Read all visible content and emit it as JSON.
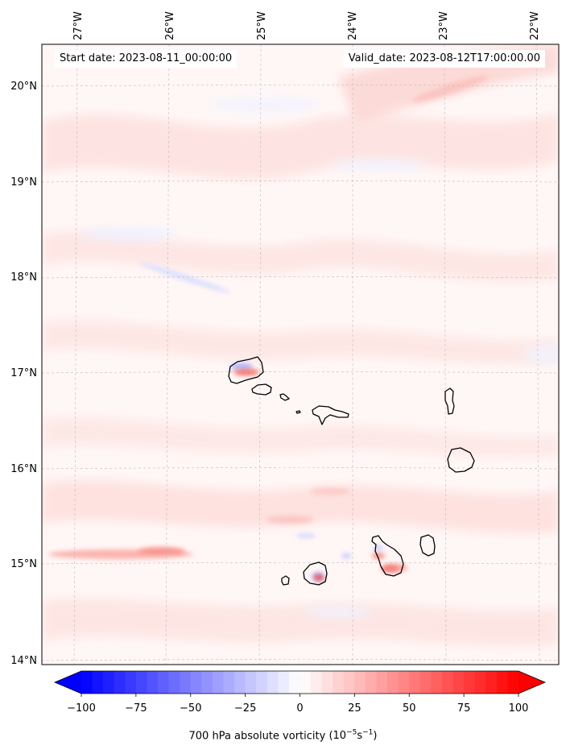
{
  "header": {
    "start_date": "Start date: 2023-08-11_00:00:00",
    "valid_date": "Valid_date: 2023-08-12T17:00:00.00"
  },
  "map": {
    "variable": "700 hPa absolute vorticity",
    "units_prefix": "(10",
    "units_exp1": "−5",
    "units_mid": "s",
    "units_exp2": "−1",
    "units_suffix": ")",
    "lon_ticks": [
      "27°W",
      "26°W",
      "25°W",
      "24°W",
      "23°W",
      "22°W"
    ],
    "lat_ticks": [
      "20°N",
      "19°N",
      "18°N",
      "17°N",
      "16°N",
      "15°N",
      "14°N"
    ],
    "extent": {
      "lon_min": -27.4,
      "lon_max": -21.95,
      "lat_min": 13.95,
      "lat_max": 20.4
    },
    "islands": [
      "Santo Antão",
      "São Vicente",
      "Santa Luzia",
      "Branco",
      "São Nicolau",
      "Sal",
      "Boa Vista",
      "Brava",
      "Fogo",
      "Santiago",
      "Maio"
    ],
    "grid": "on"
  },
  "colorbar": {
    "ticks": [
      "−100",
      "−75",
      "−50",
      "−25",
      "0",
      "25",
      "50",
      "75",
      "100"
    ],
    "min": -100,
    "max": 100,
    "extend": "both",
    "colormap": "bwr",
    "low_color": "#0000ff",
    "mid_color": "#ffffff",
    "high_color": "#ff0000"
  },
  "colors": {
    "land_outline": "#000000",
    "grid": "#bbbbbb"
  }
}
